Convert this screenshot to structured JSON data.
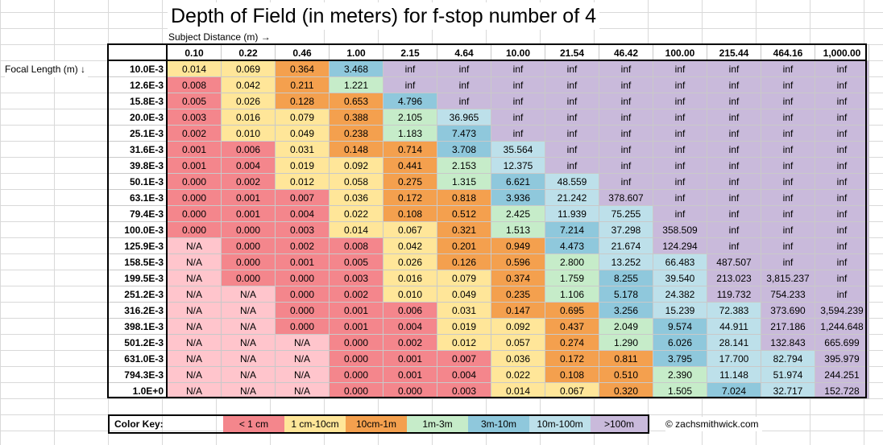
{
  "title": "Depth of Field (in meters) for f-stop number of 4",
  "subject_label": "Subject Distance (m) →",
  "focal_label": "Focal Length (m) ↓",
  "subject_distances": [
    "0.10",
    "0.22",
    "0.46",
    "1.00",
    "2.15",
    "4.64",
    "10.00",
    "21.54",
    "46.42",
    "100.00",
    "215.44",
    "464.16",
    "1,000.00"
  ],
  "rows": [
    {
      "focal": "10.0E-3",
      "values": [
        "0.014",
        "0.069",
        "0.364",
        "3.468",
        "inf",
        "inf",
        "inf",
        "inf",
        "inf",
        "inf",
        "inf",
        "inf",
        "inf"
      ]
    },
    {
      "focal": "12.6E-3",
      "values": [
        "0.008",
        "0.042",
        "0.211",
        "1.221",
        "inf",
        "inf",
        "inf",
        "inf",
        "inf",
        "inf",
        "inf",
        "inf",
        "inf"
      ]
    },
    {
      "focal": "15.8E-3",
      "values": [
        "0.005",
        "0.026",
        "0.128",
        "0.653",
        "4.796",
        "inf",
        "inf",
        "inf",
        "inf",
        "inf",
        "inf",
        "inf",
        "inf"
      ]
    },
    {
      "focal": "20.0E-3",
      "values": [
        "0.003",
        "0.016",
        "0.079",
        "0.388",
        "2.105",
        "36.965",
        "inf",
        "inf",
        "inf",
        "inf",
        "inf",
        "inf",
        "inf"
      ]
    },
    {
      "focal": "25.1E-3",
      "values": [
        "0.002",
        "0.010",
        "0.049",
        "0.238",
        "1.183",
        "7.473",
        "inf",
        "inf",
        "inf",
        "inf",
        "inf",
        "inf",
        "inf"
      ]
    },
    {
      "focal": "31.6E-3",
      "values": [
        "0.001",
        "0.006",
        "0.031",
        "0.148",
        "0.714",
        "3.708",
        "35.564",
        "inf",
        "inf",
        "inf",
        "inf",
        "inf",
        "inf"
      ]
    },
    {
      "focal": "39.8E-3",
      "values": [
        "0.001",
        "0.004",
        "0.019",
        "0.092",
        "0.441",
        "2.153",
        "12.375",
        "inf",
        "inf",
        "inf",
        "inf",
        "inf",
        "inf"
      ]
    },
    {
      "focal": "50.1E-3",
      "values": [
        "0.000",
        "0.002",
        "0.012",
        "0.058",
        "0.275",
        "1.315",
        "6.621",
        "48.559",
        "inf",
        "inf",
        "inf",
        "inf",
        "inf"
      ]
    },
    {
      "focal": "63.1E-3",
      "values": [
        "0.000",
        "0.001",
        "0.007",
        "0.036",
        "0.172",
        "0.818",
        "3.936",
        "21.242",
        "378.607",
        "inf",
        "inf",
        "inf",
        "inf"
      ]
    },
    {
      "focal": "79.4E-3",
      "values": [
        "0.000",
        "0.001",
        "0.004",
        "0.022",
        "0.108",
        "0.512",
        "2.425",
        "11.939",
        "75.255",
        "inf",
        "inf",
        "inf",
        "inf"
      ]
    },
    {
      "focal": "100.0E-3",
      "values": [
        "0.000",
        "0.000",
        "0.003",
        "0.014",
        "0.067",
        "0.321",
        "1.513",
        "7.214",
        "37.298",
        "358.509",
        "inf",
        "inf",
        "inf"
      ]
    },
    {
      "focal": "125.9E-3",
      "values": [
        "N/A",
        "0.000",
        "0.002",
        "0.008",
        "0.042",
        "0.201",
        "0.949",
        "4.473",
        "21.674",
        "124.294",
        "inf",
        "inf",
        "inf"
      ]
    },
    {
      "focal": "158.5E-3",
      "values": [
        "N/A",
        "0.000",
        "0.001",
        "0.005",
        "0.026",
        "0.126",
        "0.596",
        "2.800",
        "13.252",
        "66.483",
        "487.507",
        "inf",
        "inf"
      ]
    },
    {
      "focal": "199.5E-3",
      "values": [
        "N/A",
        "0.000",
        "0.000",
        "0.003",
        "0.016",
        "0.079",
        "0.374",
        "1.759",
        "8.255",
        "39.540",
        "213.023",
        "3,815.237",
        "inf"
      ]
    },
    {
      "focal": "251.2E-3",
      "values": [
        "N/A",
        "N/A",
        "0.000",
        "0.002",
        "0.010",
        "0.049",
        "0.235",
        "1.106",
        "5.178",
        "24.382",
        "119.732",
        "754.233",
        "inf"
      ]
    },
    {
      "focal": "316.2E-3",
      "values": [
        "N/A",
        "N/A",
        "0.000",
        "0.001",
        "0.006",
        "0.031",
        "0.147",
        "0.695",
        "3.256",
        "15.239",
        "72.383",
        "373.690",
        "3,594.239"
      ]
    },
    {
      "focal": "398.1E-3",
      "values": [
        "N/A",
        "N/A",
        "0.000",
        "0.001",
        "0.004",
        "0.019",
        "0.092",
        "0.437",
        "2.049",
        "9.574",
        "44.911",
        "217.186",
        "1,244.648"
      ]
    },
    {
      "focal": "501.2E-3",
      "values": [
        "N/A",
        "N/A",
        "N/A",
        "0.000",
        "0.002",
        "0.012",
        "0.057",
        "0.274",
        "1.290",
        "6.026",
        "28.141",
        "132.843",
        "665.699"
      ]
    },
    {
      "focal": "631.0E-3",
      "values": [
        "N/A",
        "N/A",
        "N/A",
        "0.000",
        "0.001",
        "0.007",
        "0.036",
        "0.172",
        "0.811",
        "3.795",
        "17.700",
        "82.794",
        "395.979"
      ]
    },
    {
      "focal": "794.3E-3",
      "values": [
        "N/A",
        "N/A",
        "N/A",
        "0.000",
        "0.001",
        "0.004",
        "0.022",
        "0.108",
        "0.510",
        "2.390",
        "11.148",
        "51.974",
        "244.251"
      ]
    },
    {
      "focal": "1.0E+0",
      "values": [
        "N/A",
        "N/A",
        "N/A",
        "0.000",
        "0.000",
        "0.003",
        "0.014",
        "0.067",
        "0.320",
        "1.505",
        "7.024",
        "32.717",
        "152.728"
      ]
    }
  ],
  "color_key": {
    "label": "Color Key:",
    "items": [
      {
        "label": "< 1 cm",
        "color": "#f4868c"
      },
      {
        "label": "1 cm-10cm",
        "color": "#ffe699"
      },
      {
        "label": "10cm-1m",
        "color": "#f4a04e"
      },
      {
        "label": "1m-3m",
        "color": "#c6ecc9"
      },
      {
        "label": "3m-10m",
        "color": "#8fc8dc"
      },
      {
        "label": "10m-100m",
        "color": "#bde0ea"
      },
      {
        "label": ">100m",
        "color": "#c9badb"
      }
    ],
    "na_color": "#ffc5cc"
  },
  "credit": "© zachsmithwick.com"
}
